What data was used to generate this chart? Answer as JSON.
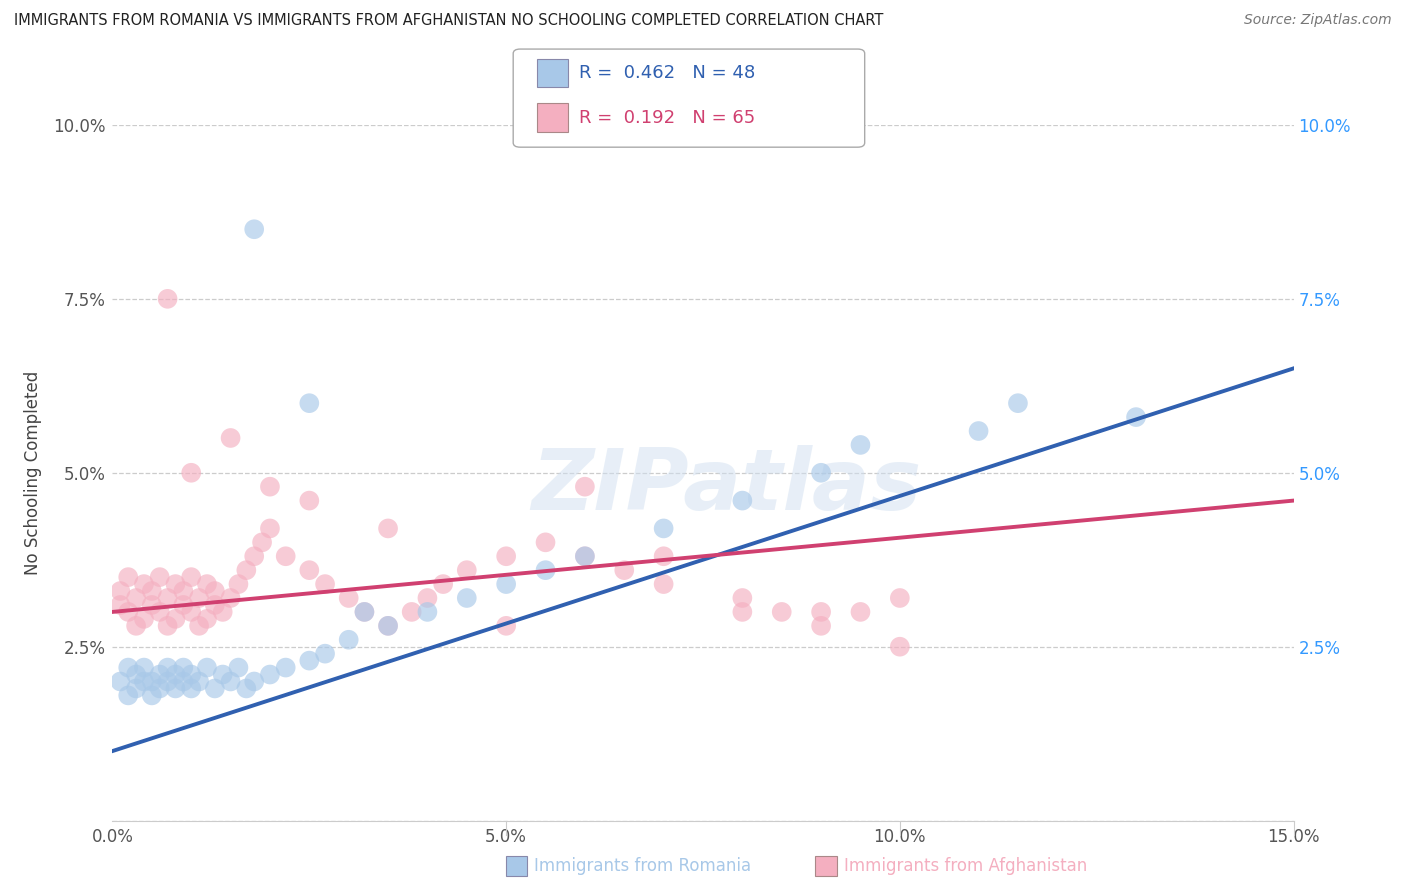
{
  "title": "IMMIGRANTS FROM ROMANIA VS IMMIGRANTS FROM AFGHANISTAN NO SCHOOLING COMPLETED CORRELATION CHART",
  "source": "Source: ZipAtlas.com",
  "ylabel": "No Schooling Completed",
  "legend_label1": "Immigrants from Romania",
  "legend_label2": "Immigrants from Afghanistan",
  "R1": 0.462,
  "N1": 48,
  "R2": 0.192,
  "N2": 65,
  "color1": "#a8c8e8",
  "color2": "#f4afc0",
  "line_color1": "#3060b0",
  "line_color2": "#d04070",
  "xlim": [
    0.0,
    0.15
  ],
  "ylim": [
    0.0,
    0.1
  ],
  "xticks": [
    0.0,
    0.05,
    0.1,
    0.15
  ],
  "yticks": [
    0.0,
    0.025,
    0.05,
    0.075,
    0.1
  ],
  "xticklabels": [
    "0.0%",
    "5.0%",
    "10.0%",
    "15.0%"
  ],
  "yticklabels_left": [
    "",
    "2.5%",
    "5.0%",
    "7.5%",
    "10.0%"
  ],
  "yticklabels_right": [
    "",
    "2.5%",
    "5.0%",
    "7.5%",
    "10.0%"
  ],
  "watermark": "ZIPatlas",
  "scatter1_x": [
    0.001,
    0.002,
    0.002,
    0.003,
    0.003,
    0.004,
    0.004,
    0.005,
    0.005,
    0.006,
    0.006,
    0.007,
    0.007,
    0.008,
    0.008,
    0.009,
    0.009,
    0.01,
    0.01,
    0.011,
    0.012,
    0.013,
    0.014,
    0.015,
    0.016,
    0.017,
    0.018,
    0.02,
    0.022,
    0.025,
    0.027,
    0.03,
    0.035,
    0.04,
    0.045,
    0.05,
    0.055,
    0.06,
    0.07,
    0.08,
    0.09,
    0.095,
    0.11,
    0.115,
    0.13,
    0.032,
    0.018,
    0.025
  ],
  "scatter1_y": [
    0.02,
    0.018,
    0.022,
    0.019,
    0.021,
    0.02,
    0.022,
    0.018,
    0.02,
    0.019,
    0.021,
    0.02,
    0.022,
    0.019,
    0.021,
    0.02,
    0.022,
    0.019,
    0.021,
    0.02,
    0.022,
    0.019,
    0.021,
    0.02,
    0.022,
    0.019,
    0.02,
    0.021,
    0.022,
    0.023,
    0.024,
    0.026,
    0.028,
    0.03,
    0.032,
    0.034,
    0.036,
    0.038,
    0.042,
    0.046,
    0.05,
    0.054,
    0.056,
    0.06,
    0.058,
    0.03,
    0.085,
    0.06
  ],
  "scatter2_x": [
    0.001,
    0.001,
    0.002,
    0.002,
    0.003,
    0.003,
    0.004,
    0.004,
    0.005,
    0.005,
    0.006,
    0.006,
    0.007,
    0.007,
    0.008,
    0.008,
    0.009,
    0.009,
    0.01,
    0.01,
    0.011,
    0.011,
    0.012,
    0.012,
    0.013,
    0.013,
    0.014,
    0.015,
    0.016,
    0.017,
    0.018,
    0.019,
    0.02,
    0.022,
    0.025,
    0.027,
    0.03,
    0.032,
    0.035,
    0.038,
    0.04,
    0.042,
    0.045,
    0.05,
    0.055,
    0.06,
    0.065,
    0.07,
    0.08,
    0.085,
    0.09,
    0.095,
    0.1,
    0.007,
    0.01,
    0.015,
    0.02,
    0.025,
    0.035,
    0.05,
    0.06,
    0.07,
    0.08,
    0.09,
    0.1
  ],
  "scatter2_y": [
    0.031,
    0.033,
    0.03,
    0.035,
    0.032,
    0.028,
    0.034,
    0.029,
    0.031,
    0.033,
    0.03,
    0.035,
    0.032,
    0.028,
    0.034,
    0.029,
    0.031,
    0.033,
    0.03,
    0.035,
    0.032,
    0.028,
    0.034,
    0.029,
    0.031,
    0.033,
    0.03,
    0.032,
    0.034,
    0.036,
    0.038,
    0.04,
    0.042,
    0.038,
    0.036,
    0.034,
    0.032,
    0.03,
    0.028,
    0.03,
    0.032,
    0.034,
    0.036,
    0.038,
    0.04,
    0.038,
    0.036,
    0.034,
    0.032,
    0.03,
    0.028,
    0.03,
    0.032,
    0.075,
    0.05,
    0.055,
    0.048,
    0.046,
    0.042,
    0.028,
    0.048,
    0.038,
    0.03,
    0.03,
    0.025
  ],
  "trendline1_x": [
    0.0,
    0.15
  ],
  "trendline1_y": [
    0.01,
    0.065
  ],
  "trendline2_x": [
    0.0,
    0.15
  ],
  "trendline2_y": [
    0.03,
    0.046
  ]
}
